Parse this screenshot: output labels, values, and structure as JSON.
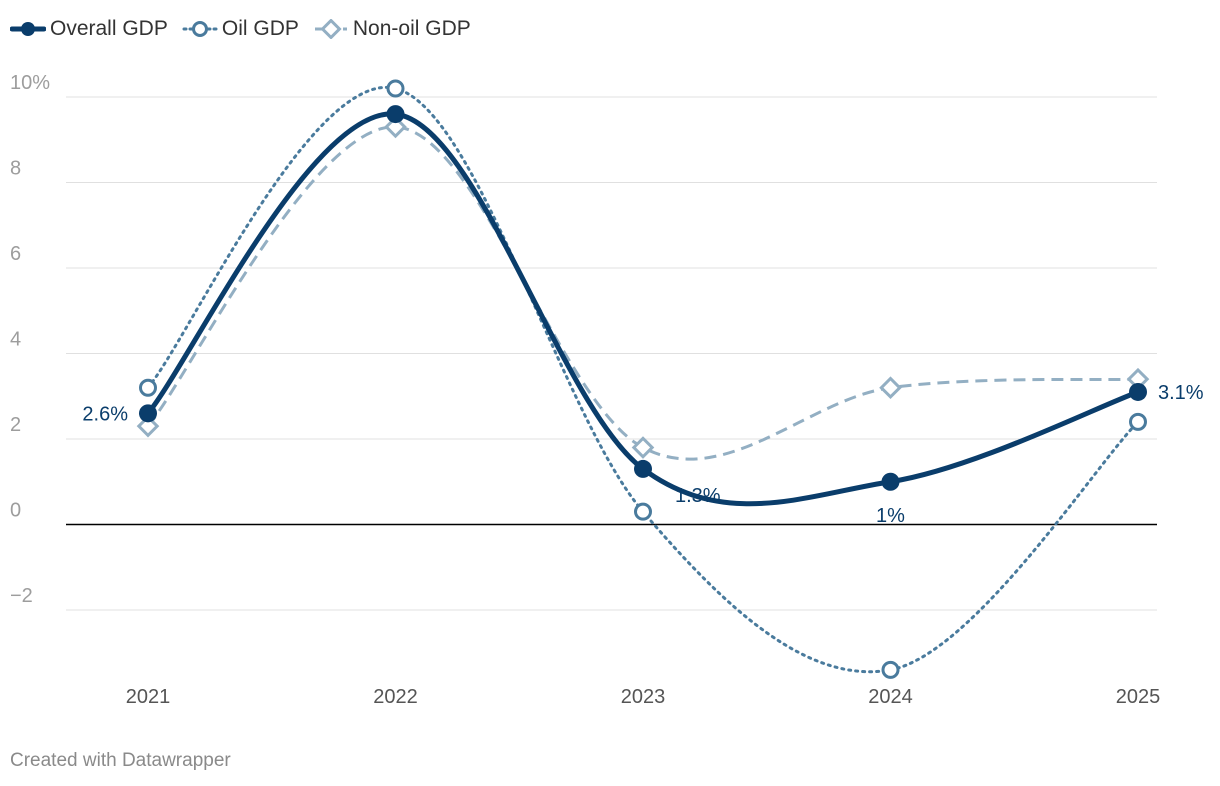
{
  "chart_data": {
    "type": "line",
    "title": "",
    "xlabel": "",
    "ylabel": "",
    "categories": [
      "2021",
      "2022",
      "2023",
      "2024",
      "2025"
    ],
    "ylim": [
      -3.6,
      10.5
    ],
    "yticks": [
      -2,
      0,
      2,
      4,
      6,
      8,
      10
    ],
    "ytick_labels": [
      "−2",
      "0",
      "2",
      "4",
      "6",
      "8",
      "10%"
    ],
    "grid": true,
    "legend_position": "top-left",
    "series": [
      {
        "name": "Overall GDP",
        "values": [
          2.6,
          9.6,
          1.3,
          1.0,
          3.1
        ],
        "color": "#0a3d6b",
        "marker": "filled-circle",
        "line_style": "solid",
        "data_labels": [
          "2.6%",
          "",
          "1.3%",
          "1%",
          "3.1%"
        ]
      },
      {
        "name": "Oil GDP",
        "values": [
          3.2,
          10.2,
          0.3,
          -3.4,
          2.4
        ],
        "color": "#4a7b9d",
        "marker": "hollow-circle",
        "line_style": "dotted"
      },
      {
        "name": "Non-oil GDP",
        "values": [
          2.3,
          9.3,
          1.8,
          3.2,
          3.4
        ],
        "color": "#93afc3",
        "marker": "hollow-diamond",
        "line_style": "dashed"
      }
    ]
  },
  "credit": "Created with Datawrapper"
}
